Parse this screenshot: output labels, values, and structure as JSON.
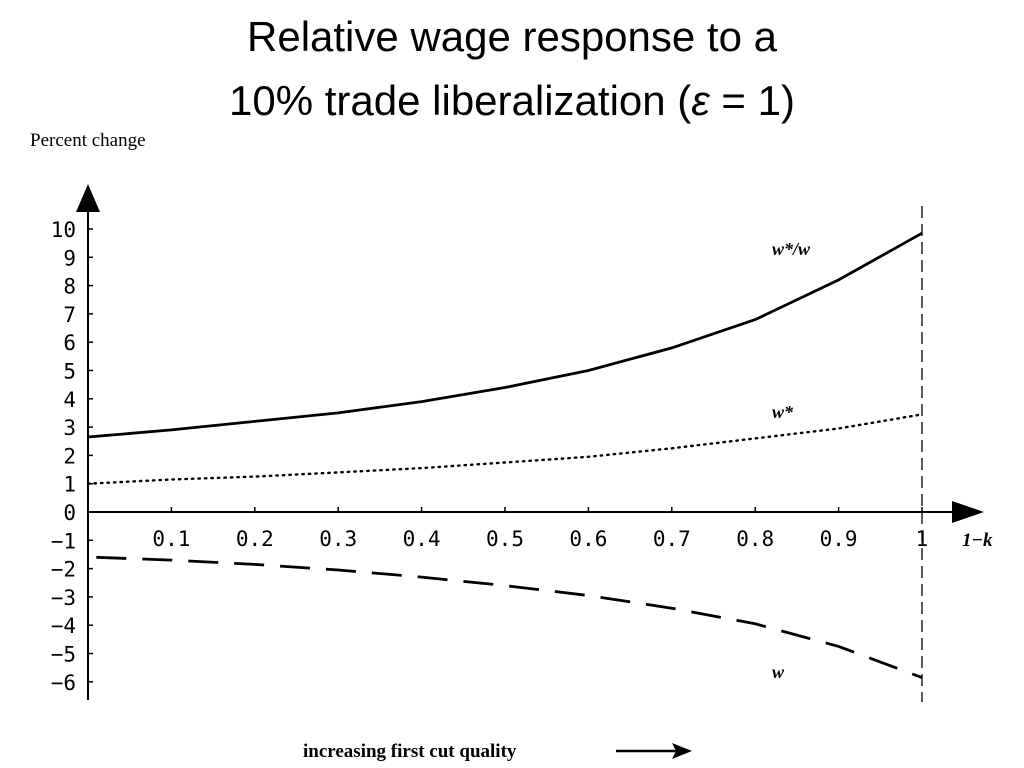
{
  "slide": {
    "title_line1": "Relative wage response to a",
    "title_line2_pre": "10% trade liberalization (",
    "title_epsilon": "ε",
    "title_line2_post": " = 1)",
    "footer": "increasing first cut quality"
  },
  "chart_data": {
    "type": "line",
    "ylabel": "Percent change",
    "xlabel": "1−k",
    "xlim": [
      0,
      1
    ],
    "ylim": [
      -6.2,
      10.8
    ],
    "x_ticks": [
      "0.1",
      "0.2",
      "0.3",
      "0.4",
      "0.5",
      "0.6",
      "0.7",
      "0.8",
      "0.9",
      "1"
    ],
    "y_ticks": [
      "10",
      "9",
      "8",
      "7",
      "6",
      "5",
      "4",
      "3",
      "2",
      "1",
      "0",
      "−1",
      "−2",
      "−3",
      "−4",
      "−5",
      "−6"
    ],
    "grid": false,
    "legend": "none",
    "series": [
      {
        "name": "w*/w",
        "style": "solid",
        "x": [
          0,
          0.1,
          0.2,
          0.3,
          0.4,
          0.5,
          0.6,
          0.7,
          0.8,
          0.9,
          1.0
        ],
        "y": [
          2.65,
          2.9,
          3.2,
          3.5,
          3.9,
          4.4,
          5.0,
          5.8,
          6.8,
          8.2,
          9.85
        ]
      },
      {
        "name": "w*",
        "style": "dotted",
        "x": [
          0,
          0.1,
          0.2,
          0.3,
          0.4,
          0.5,
          0.6,
          0.7,
          0.8,
          0.9,
          1.0
        ],
        "y": [
          1.0,
          1.15,
          1.25,
          1.4,
          1.55,
          1.75,
          1.95,
          2.25,
          2.6,
          2.95,
          3.45
        ]
      },
      {
        "name": "w",
        "style": "dashed",
        "x": [
          0.01,
          0.1,
          0.2,
          0.3,
          0.4,
          0.5,
          0.6,
          0.7,
          0.8,
          0.9,
          1.0
        ],
        "y": [
          -1.6,
          -1.7,
          -1.85,
          -2.05,
          -2.3,
          -2.6,
          -2.95,
          -3.4,
          -3.95,
          -4.75,
          -5.85
        ]
      }
    ],
    "annotations": [
      "w*/w",
      "w*",
      "w"
    ]
  },
  "colors": {
    "line": "#000000",
    "background": "#ffffff"
  }
}
